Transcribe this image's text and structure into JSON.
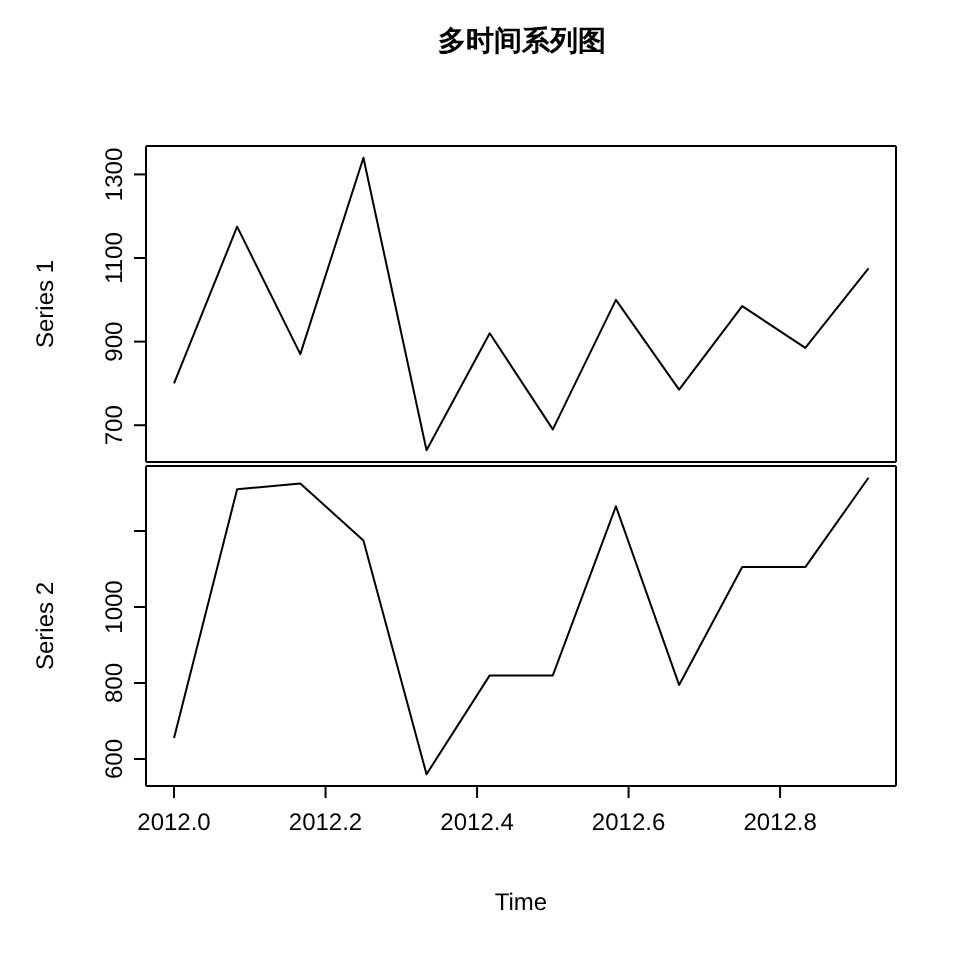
{
  "chart_data": [
    {
      "type": "line",
      "title": "多时间系列图",
      "ylabel": "Series 1",
      "x": [
        2012,
        2012.0833,
        2012.1667,
        2012.25,
        2012.3333,
        2012.4167,
        2012.5,
        2012.5833,
        2012.6667,
        2012.75,
        2012.8333,
        2012.9167
      ],
      "values": [
        800,
        1175,
        870,
        1340,
        640,
        920,
        690,
        1000,
        785,
        985,
        885,
        1075
      ],
      "color": "#000000",
      "xlim": [
        2011.963,
        2012.953
      ],
      "ylim": [
        612,
        1368
      ],
      "yticks": [
        700,
        900,
        1100,
        1300
      ],
      "tick_labels": "y",
      "grid": false,
      "legend": false
    },
    {
      "type": "line",
      "xlabel": "Time",
      "ylabel": "Series 2",
      "x": [
        2012,
        2012.0833,
        2012.1667,
        2012.25,
        2012.3333,
        2012.4167,
        2012.5,
        2012.5833,
        2012.6667,
        2012.75,
        2012.8333,
        2012.9167
      ],
      "values": [
        655,
        1310,
        1325,
        1175,
        560,
        820,
        820,
        1265,
        795,
        1105,
        1105,
        1340
      ],
      "color": "#000000",
      "xlim": [
        2011.963,
        2012.953
      ],
      "ylim": [
        529,
        1371
      ],
      "yticks": [
        600,
        800,
        1000,
        {
          "value": 1200,
          "label": null
        }
      ],
      "xticks": [
        {
          "value": 2012,
          "label": "2012.0"
        },
        {
          "value": 2012.2,
          "label": "2012.2"
        },
        {
          "value": 2012.4,
          "label": "2012.4"
        },
        {
          "value": 2012.6,
          "label": "2012.6"
        },
        {
          "value": 2012.8,
          "label": "2012.8"
        }
      ],
      "grid": false,
      "legend": false
    }
  ]
}
